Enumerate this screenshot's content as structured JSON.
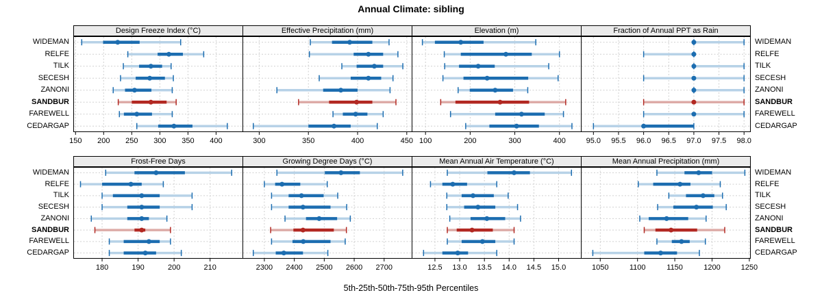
{
  "title": "Annual Climate: sibling",
  "caption": "5th-25th-50th-75th-95th Percentiles",
  "sites": [
    "WIDEMAN",
    "RELFE",
    "TILK",
    "SECESH",
    "ZANONI",
    "SANDBUR",
    "FAREWELL",
    "CEDARGAP"
  ],
  "highlight_site": "SANDBUR",
  "colors": {
    "series": "#1c6db0",
    "series_light": "#b7d2e7",
    "highlight": "#b22822",
    "highlight_light": "#ddaba7",
    "grid": "#cfcfcf",
    "header_bg": "#ebebeb",
    "border": "#000000"
  },
  "chart_data": {
    "type": "dot-whisker-percentile",
    "title": "Annual Climate: sibling",
    "xlabel": "5th-25th-50th-75th-95th Percentiles",
    "percentile_order": [
      5,
      25,
      50,
      75,
      95
    ],
    "legend_position": "none",
    "grid": "dashed",
    "layout_hints": {
      "rows": 2,
      "cols": 4,
      "site_labels": "both-sides",
      "highlight_site": "SANDBUR"
    },
    "panels": [
      {
        "title": "Design Freeze Index (°C)",
        "row": 0,
        "col": 0,
        "xlim": [
          146,
          447
        ],
        "tick_values": [
          150,
          200,
          250,
          300,
          350,
          400
        ],
        "tick_labels": [
          "150",
          "200",
          "250",
          "300",
          "350",
          "400"
        ],
        "series": [
          {
            "site": "WIDEMAN",
            "percentiles": [
              161,
              199,
              225,
              264,
              337
            ]
          },
          {
            "site": "RELFE",
            "percentiles": [
              243,
              296,
              316,
              341,
              378
            ]
          },
          {
            "site": "TILK",
            "percentiles": [
              235,
              263,
              284,
              304,
              320
            ]
          },
          {
            "site": "SECESH",
            "percentiles": [
              230,
              257,
              282,
              309,
              324
            ]
          },
          {
            "site": "ZANONI",
            "percentiles": [
              217,
              238,
              255,
              285,
              322
            ]
          },
          {
            "site": "SANDBUR",
            "percentiles": [
              226,
              250,
              284,
              312,
              329
            ]
          },
          {
            "site": "FAREWELL",
            "percentiles": [
              228,
              236,
              259,
              286,
              322
            ]
          },
          {
            "site": "CEDARGAP",
            "percentiles": [
              259,
              297,
              325,
              358,
              420
            ]
          }
        ]
      },
      {
        "title": "Effective Precipitation (mm)",
        "row": 0,
        "col": 1,
        "xlim": [
          283,
          455
        ],
        "tick_values": [
          300,
          350,
          400,
          450
        ],
        "tick_labels": [
          "300",
          "350",
          "400",
          "450"
        ],
        "series": [
          {
            "site": "WIDEMAN",
            "percentiles": [
              352,
              374,
              392,
              415,
              432
            ]
          },
          {
            "site": "RELFE",
            "percentiles": [
              351,
              396,
              411,
              426,
              441
            ]
          },
          {
            "site": "TILK",
            "percentiles": [
              384,
              399,
              417,
              426,
              446
            ]
          },
          {
            "site": "SECESH",
            "percentiles": [
              361,
              393,
              411,
              424,
              436
            ]
          },
          {
            "site": "ZANONI",
            "percentiles": [
              318,
              365,
              383,
              400,
              433
            ]
          },
          {
            "site": "SANDBUR",
            "percentiles": [
              340,
              371,
              399,
              415,
              439
            ]
          },
          {
            "site": "FAREWELL",
            "percentiles": [
              375,
              385,
              398,
              410,
              426
            ]
          },
          {
            "site": "CEDARGAP",
            "percentiles": [
              294,
              350,
              376,
              393,
              420
            ]
          }
        ]
      },
      {
        "title": "Elevation (m)",
        "row": 0,
        "col": 2,
        "xlim": [
          69,
          448
        ],
        "tick_values": [
          100,
          200,
          300,
          400
        ],
        "tick_labels": [
          "100",
          "200",
          "300",
          "400"
        ],
        "series": [
          {
            "site": "WIDEMAN",
            "percentiles": [
              93,
              121,
              179,
              230,
              347
            ]
          },
          {
            "site": "RELFE",
            "percentiles": [
              142,
              179,
              280,
              338,
              400
            ]
          },
          {
            "site": "TILK",
            "percentiles": [
              143,
              175,
              218,
              255,
              376
            ]
          },
          {
            "site": "SECESH",
            "percentiles": [
              139,
              185,
              238,
              330,
              397
            ]
          },
          {
            "site": "ZANONI",
            "percentiles": [
              173,
              199,
              256,
              296,
              329
            ]
          },
          {
            "site": "SANDBUR",
            "percentiles": [
              134,
              167,
              267,
              332,
              414
            ]
          },
          {
            "site": "FAREWELL",
            "percentiles": [
              156,
              256,
              315,
              367,
              409
            ]
          },
          {
            "site": "CEDARGAP",
            "percentiles": [
              190,
              243,
              304,
              354,
              428
            ]
          }
        ]
      },
      {
        "title": "Fraction of Annual PPT as Rain",
        "row": 0,
        "col": 3,
        "xlim": [
          94.75,
          98.12
        ],
        "tick_values": [
          95.0,
          95.5,
          96.0,
          96.5,
          97.0,
          97.5,
          98.0
        ],
        "tick_labels": [
          "95.0",
          "95.5",
          "96.0",
          "96.5",
          "97.0",
          "97.5",
          "98.0"
        ],
        "series": [
          {
            "site": "WIDEMAN",
            "percentiles": [
              97,
              97,
              97,
              97,
              98
            ]
          },
          {
            "site": "RELFE",
            "percentiles": [
              96,
              97,
              97,
              97,
              97
            ]
          },
          {
            "site": "TILK",
            "percentiles": [
              97,
              97,
              97,
              97,
              98
            ]
          },
          {
            "site": "SECESH",
            "percentiles": [
              96,
              97,
              97,
              97,
              98
            ]
          },
          {
            "site": "ZANONI",
            "percentiles": [
              97,
              97,
              97,
              97,
              98
            ]
          },
          {
            "site": "SANDBUR",
            "percentiles": [
              96,
              97,
              97,
              97,
              98
            ]
          },
          {
            "site": "FAREWELL",
            "percentiles": [
              96,
              97,
              97,
              97,
              98
            ]
          },
          {
            "site": "CEDARGAP",
            "percentiles": [
              95,
              96,
              96,
              97,
              97
            ]
          }
        ]
      },
      {
        "title": "Frost-Free Days",
        "row": 1,
        "col": 0,
        "xlim": [
          172,
          219
        ],
        "tick_values": [
          180,
          190,
          200,
          210
        ],
        "tick_labels": [
          "180",
          "190",
          "200",
          "210"
        ],
        "series": [
          {
            "site": "WIDEMAN",
            "percentiles": [
              181,
              189,
              195,
              203,
              216
            ]
          },
          {
            "site": "RELFE",
            "percentiles": [
              174,
              180,
              188,
              191,
              197
            ]
          },
          {
            "site": "TILK",
            "percentiles": [
              180,
              183,
              191,
              196,
              205
            ]
          },
          {
            "site": "SECESH",
            "percentiles": [
              180,
              187,
              191,
              196,
              205
            ]
          },
          {
            "site": "ZANONI",
            "percentiles": [
              177,
              187,
              191,
              193,
              198
            ]
          },
          {
            "site": "SANDBUR",
            "percentiles": [
              178,
              189,
              191,
              192,
              199
            ]
          },
          {
            "site": "FAREWELL",
            "percentiles": [
              182,
              186,
              193,
              196,
              199
            ]
          },
          {
            "site": "CEDARGAP",
            "percentiles": [
              182,
              186,
              192,
              195,
              202
            ]
          }
        ]
      },
      {
        "title": "Growing Degree Days (°C)",
        "row": 1,
        "col": 1,
        "xlim": [
          2227,
          2792
        ],
        "tick_values": [
          2300,
          2400,
          2500,
          2600,
          2700
        ],
        "tick_labels": [
          "2300",
          "2400",
          "2500",
          "2600",
          "2700"
        ],
        "series": [
          {
            "site": "WIDEMAN",
            "percentiles": [
              2342,
              2502,
              2556,
              2619,
              2762
            ]
          },
          {
            "site": "RELFE",
            "percentiles": [
              2300,
              2336,
              2359,
              2420,
              2510
            ]
          },
          {
            "site": "TILK",
            "percentiles": [
              2324,
              2381,
              2424,
              2498,
              2545
            ]
          },
          {
            "site": "SECESH",
            "percentiles": [
              2324,
              2381,
              2429,
              2521,
              2575
            ]
          },
          {
            "site": "ZANONI",
            "percentiles": [
              2369,
              2439,
              2483,
              2543,
              2587
            ]
          },
          {
            "site": "SANDBUR",
            "percentiles": [
              2321,
              2397,
              2429,
              2532,
              2574
            ]
          },
          {
            "site": "FAREWELL",
            "percentiles": [
              2324,
              2394,
              2430,
              2521,
              2570
            ]
          },
          {
            "site": "CEDARGAP",
            "percentiles": [
              2263,
              2338,
              2365,
              2429,
              2512
            ]
          }
        ]
      },
      {
        "title": "Mean Annual Air Temperature (°C)",
        "row": 1,
        "col": 2,
        "xlim": [
          12.03,
          15.45
        ],
        "tick_values": [
          12.5,
          13.0,
          13.5,
          14.0,
          14.5,
          15.0
        ],
        "tick_labels": [
          "12.5",
          "13.0",
          "13.5",
          "14.0",
          "14.5",
          "15.0"
        ],
        "series": [
          {
            "site": "WIDEMAN",
            "percentiles": [
              12.75,
              13.56,
              14.1,
              14.42,
              15.26
            ]
          },
          {
            "site": "RELFE",
            "percentiles": [
              12.41,
              12.65,
              12.86,
              13.15,
              13.75
            ]
          },
          {
            "site": "TILK",
            "percentiles": [
              12.74,
              13.04,
              13.27,
              13.69,
              13.98
            ]
          },
          {
            "site": "SECESH",
            "percentiles": [
              12.74,
              13.09,
              13.37,
              13.72,
              14.17
            ]
          },
          {
            "site": "ZANONI",
            "percentiles": [
              12.8,
              13.22,
              13.55,
              13.92,
              14.23
            ]
          },
          {
            "site": "SANDBUR",
            "percentiles": [
              12.75,
              12.94,
              13.25,
              13.67,
              14.1
            ]
          },
          {
            "site": "FAREWELL",
            "percentiles": [
              12.75,
              13.04,
              13.46,
              13.72,
              14.1
            ]
          },
          {
            "site": "CEDARGAP",
            "percentiles": [
              12.27,
              12.65,
              12.96,
              13.17,
              13.75
            ]
          }
        ]
      },
      {
        "title": "Mean Annual Precipitation (mm)",
        "row": 1,
        "col": 3,
        "xlim": [
          1024,
          1251
        ],
        "tick_values": [
          1050,
          1100,
          1150,
          1200,
          1250
        ],
        "tick_labels": [
          "1050",
          "1100",
          "1150",
          "1200",
          "1250"
        ],
        "series": [
          {
            "site": "WIDEMAN",
            "percentiles": [
              1126,
              1163,
              1182,
              1200,
              1244
            ]
          },
          {
            "site": "RELFE",
            "percentiles": [
              1101,
              1121,
              1157,
              1171,
              1211
            ]
          },
          {
            "site": "TILK",
            "percentiles": [
              1142,
              1165,
              1188,
              1203,
              1214
            ]
          },
          {
            "site": "SECESH",
            "percentiles": [
              1127,
              1148,
              1179,
              1201,
              1219
            ]
          },
          {
            "site": "ZANONI",
            "percentiles": [
              1103,
              1115,
              1139,
              1168,
              1192
            ]
          },
          {
            "site": "SANDBUR",
            "percentiles": [
              1109,
              1124,
              1145,
              1180,
              1217
            ]
          },
          {
            "site": "FAREWELL",
            "percentiles": [
              1126,
              1146,
              1159,
              1170,
              1191
            ]
          },
          {
            "site": "CEDARGAP",
            "percentiles": [
              1040,
              1109,
              1131,
              1153,
              1183
            ]
          }
        ]
      }
    ]
  }
}
